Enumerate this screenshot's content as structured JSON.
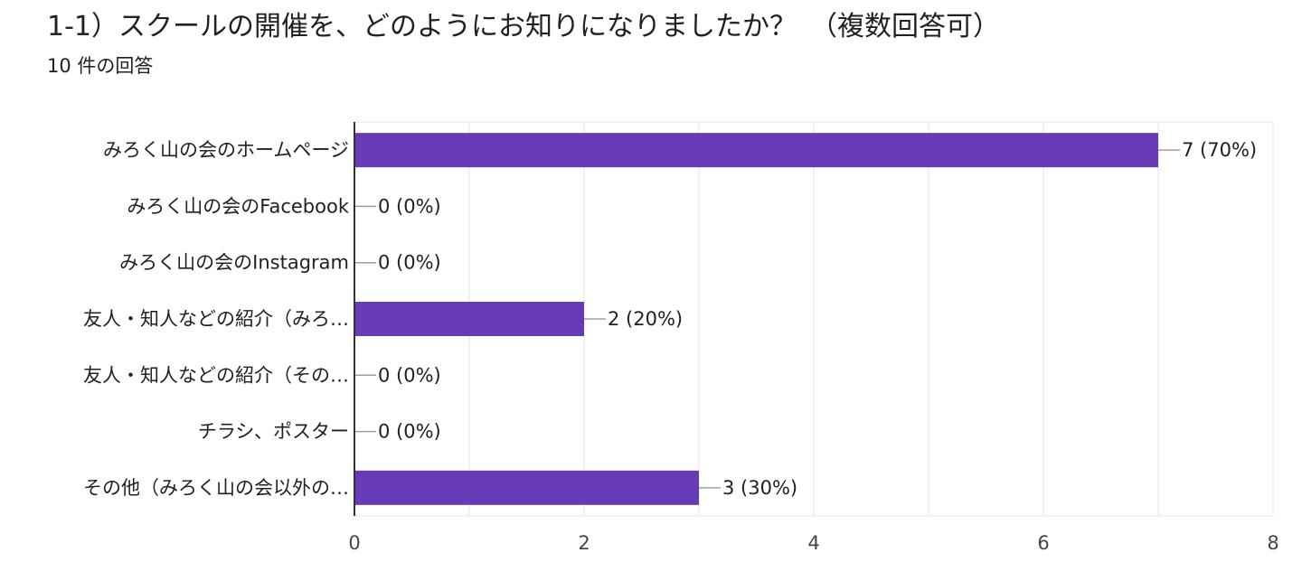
{
  "title": "1-1）スクールの開催を、どのようにお知りになりましたか？　（複数回答可）",
  "subtitle": "10 件の回答",
  "colors": {
    "bar": "#673ab7",
    "grid": "#e6e6e6",
    "axis": "#333333",
    "leader": "#9e9e9e"
  },
  "chart_data": {
    "type": "bar",
    "orientation": "horizontal",
    "categories": [
      "みろく山の会のホームページ",
      "みろく山の会のFacebook",
      "みろく山の会のInstagram",
      "友人・知人などの紹介（みろ…",
      "友人・知人などの紹介（その…",
      "チラシ、ポスター",
      "その他（みろく山の会以外の…"
    ],
    "values": [
      7,
      0,
      0,
      2,
      0,
      0,
      3
    ],
    "data_labels": [
      "7 (70%)",
      "0 (0%)",
      "0 (0%)",
      "2 (20%)",
      "0 (0%)",
      "0 (0%)",
      "3 (30%)"
    ],
    "xlim": [
      0,
      8
    ],
    "xticks": [
      "0",
      "2",
      "4",
      "6",
      "8"
    ],
    "grid": true,
    "legend": "none"
  }
}
